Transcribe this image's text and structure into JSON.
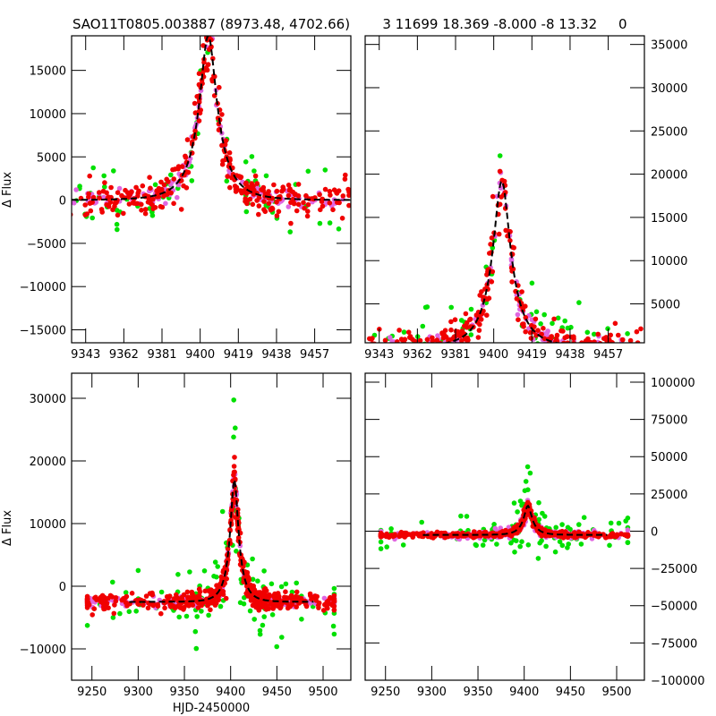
{
  "title_left": "SAO11T0805.003887 (8973.48, 4702.66)",
  "title_right": "3 11699 18.369 -8.000 -8 13.32     0",
  "colors": {
    "green": "#00e000",
    "magenta": "#e066e0",
    "red": "#f00000",
    "model": "#000000"
  },
  "chart_data": [
    {
      "id": "top-left",
      "type": "scatter",
      "ylabel": "Δ Flux",
      "xlabel": "",
      "xlim": [
        9336,
        9475
      ],
      "ylim": [
        -16500,
        19000
      ],
      "xticks": [
        "9343",
        "9362",
        "9381",
        "9400",
        "9419",
        "9438",
        "9457"
      ],
      "yticks": [
        "-15000",
        "-10000",
        "-5000",
        "0",
        "5000",
        "10000",
        "15000"
      ],
      "ytick_side": "left",
      "model": {
        "t0": 9404,
        "amp": 19000,
        "tE": 14
      },
      "series": [
        {
          "name": "red",
          "peak": 18000,
          "spread": 2000,
          "n": 340,
          "seed": 1
        },
        {
          "name": "magenta",
          "peak": 18000,
          "spread": 900,
          "n": 130,
          "seed": 2
        },
        {
          "name": "green",
          "peak": 18000,
          "spread": 3500,
          "n": 70,
          "seed": 3
        }
      ]
    },
    {
      "id": "top-right",
      "type": "scatter",
      "ylabel": "",
      "xlabel": "",
      "xlim": [
        9336,
        9475
      ],
      "ylim": [
        500,
        36000
      ],
      "xticks": [
        "9343",
        "9362",
        "9381",
        "9400",
        "9419",
        "9438",
        "9457"
      ],
      "yticks": [
        "5000",
        "10000",
        "15000",
        "20000",
        "25000",
        "30000",
        "35000"
      ],
      "ytick_side": "right",
      "model": {
        "t0": 9404,
        "amp": 19200,
        "tE": 14
      },
      "series": [
        {
          "name": "red",
          "peak": 18500,
          "spread": 1800,
          "n": 320,
          "seed": 4
        },
        {
          "name": "magenta",
          "peak": 18500,
          "spread": 900,
          "n": 130,
          "seed": 5
        },
        {
          "name": "green",
          "peak": 18500,
          "spread": 4500,
          "n": 80,
          "seed": 6
        }
      ]
    },
    {
      "id": "bottom-left",
      "type": "scatter",
      "ylabel": "Δ Flux",
      "xlabel": "HJD-2450000",
      "xlim": [
        9228,
        9530
      ],
      "ylim": [
        -15000,
        34000
      ],
      "xticks": [
        "9250",
        "9300",
        "9350",
        "9400",
        "9450",
        "9500"
      ],
      "yticks": [
        "-10000",
        "0",
        "10000",
        "20000",
        "30000"
      ],
      "ytick_side": "left",
      "model": {
        "t0": 9404,
        "amp": 19500,
        "tE": 14,
        "base": -2500
      },
      "series": [
        {
          "name": "red",
          "peak": 19000,
          "spread": 1800,
          "n": 520,
          "seed": 7
        },
        {
          "name": "magenta",
          "peak": 19000,
          "spread": 1100,
          "n": 220,
          "seed": 8
        },
        {
          "name": "green",
          "peak": 19000,
          "spread": 6000,
          "n": 110,
          "seed": 9
        }
      ]
    },
    {
      "id": "bottom-right",
      "type": "scatter",
      "ylabel": "",
      "xlabel": "",
      "xlim": [
        9228,
        9530
      ],
      "ylim": [
        -100000,
        106000
      ],
      "xticks": [
        "9250",
        "9300",
        "9350",
        "9400",
        "9450",
        "9500"
      ],
      "yticks": [
        "-100000",
        "-75000",
        "-50000",
        "-25000",
        "0",
        "25000",
        "50000",
        "75000",
        "100000"
      ],
      "ytick_side": "right",
      "model": {
        "t0": 9404,
        "amp": 19500,
        "tE": 14,
        "base": -2500
      },
      "series": [
        {
          "name": "red",
          "peak": 19000,
          "spread": 2200,
          "n": 520,
          "seed": 10
        },
        {
          "name": "magenta",
          "peak": 19000,
          "spread": 3500,
          "n": 200,
          "seed": 11
        },
        {
          "name": "green",
          "peak": 19000,
          "spread": 15000,
          "n": 110,
          "seed": 12
        }
      ]
    }
  ]
}
